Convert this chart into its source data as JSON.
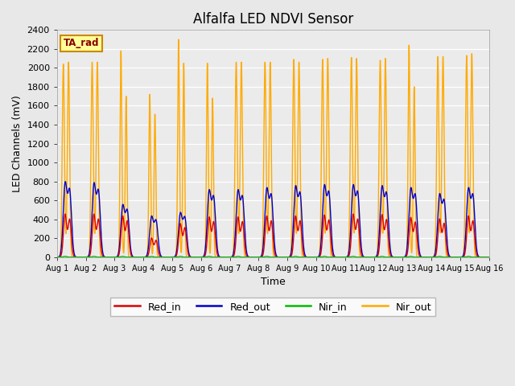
{
  "title": "Alfalfa LED NDVI Sensor",
  "xlabel": "Time",
  "ylabel": "LED Channels (mV)",
  "ylim": [
    0,
    2400
  ],
  "background_color": "#e8e8e8",
  "plot_bg_color": "#ebebeb",
  "grid_color": "#ffffff",
  "annotation_text": "TA_rad",
  "annotation_bg": "#ffff99",
  "annotation_border": "#cc8800",
  "annotation_text_color": "#880000",
  "legend_labels": [
    "Red_in",
    "Red_out",
    "Nir_in",
    "Nir_out"
  ],
  "legend_colors": [
    "#dd0000",
    "#0000cc",
    "#00bb00",
    "#ffaa00"
  ],
  "series_colors": {
    "Red_in": "#dd0000",
    "Red_out": "#0000cc",
    "Nir_in": "#00bb00",
    "Nir_out": "#ffaa00"
  },
  "xtick_labels": [
    "Aug 1",
    "Aug 2",
    "Aug 3",
    "Aug 4",
    "Aug 5",
    "Aug 6",
    "Aug 7",
    "Aug 8",
    "Aug 9",
    "Aug 10",
    "Aug 11",
    "Aug 12",
    "Aug 13",
    "Aug 14",
    "Aug 15",
    "Aug 16"
  ],
  "ytick_vals": [
    0,
    200,
    400,
    600,
    800,
    1000,
    1200,
    1400,
    1600,
    1800,
    2000,
    2200,
    2400
  ],
  "day_peaks": {
    "red_in": [
      450,
      450,
      430,
      200,
      350,
      420,
      420,
      430,
      430,
      440,
      450,
      445,
      415,
      400,
      430
    ],
    "red_out": [
      760,
      750,
      530,
      415,
      450,
      680,
      680,
      700,
      720,
      730,
      730,
      720,
      700,
      640,
      700
    ],
    "nir_out_peak1": [
      2040,
      2060,
      2180,
      1720,
      2300,
      2050,
      2060,
      2060,
      2090,
      2090,
      2110,
      2080,
      2240,
      2120,
      2130
    ],
    "nir_out_peak2": [
      2060,
      2060,
      1700,
      1510,
      2050,
      1680,
      2060,
      2060,
      2060,
      2100,
      2100,
      2100,
      1800,
      2120,
      2150
    ],
    "nir_out_valley": [
      0,
      0,
      940,
      1230,
      1210,
      1450,
      0,
      0,
      0,
      0,
      0,
      0,
      1100,
      0,
      0
    ]
  }
}
